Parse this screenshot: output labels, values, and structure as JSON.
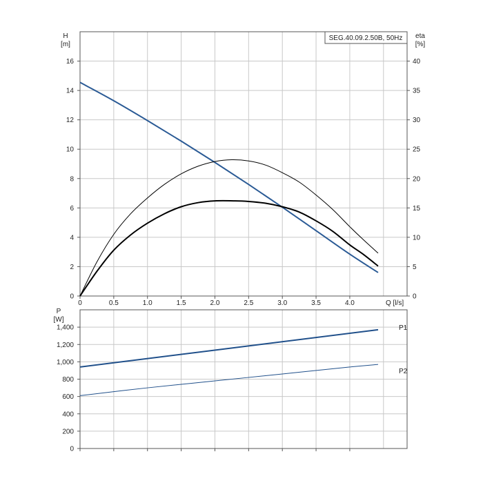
{
  "title_box": "SEG.40.09.2.50B, 50Hz",
  "colors": {
    "head": "#2a5a95",
    "power": "#1f4f8a",
    "eta": "#000000",
    "grid": "#c8c8c8"
  },
  "chart_data": [
    {
      "type": "line",
      "panel": "upper",
      "xlabel": "Q [l/s]",
      "ylabel_left": [
        "H",
        "[m]"
      ],
      "ylabel_right": [
        "eta",
        "[%]"
      ],
      "xlim": [
        0,
        4.85
      ],
      "x_ticks": [
        0,
        0.5,
        1.0,
        1.5,
        2.0,
        2.5,
        3.0,
        3.5,
        4.0
      ],
      "x_tick_labels": [
        "0",
        "0.5",
        "1.0",
        "1.5",
        "2.0",
        "2.5",
        "3.0",
        "3.5",
        "4.0"
      ],
      "ylim_left": [
        0,
        18
      ],
      "y_ticks_left": [
        0,
        2,
        4,
        6,
        8,
        10,
        12,
        14,
        16
      ],
      "ylim_right": [
        0,
        45
      ],
      "y_ticks_right": [
        0,
        5,
        10,
        15,
        20,
        25,
        30,
        35,
        40
      ],
      "grid": true,
      "series": [
        {
          "id": "head",
          "axis": "left",
          "x": [
            0,
            0.5,
            1.0,
            1.5,
            2.0,
            2.5,
            3.0,
            3.5,
            4.0,
            4.42
          ],
          "y": [
            14.55,
            13.3,
            11.95,
            10.55,
            9.1,
            7.6,
            6.05,
            4.45,
            2.85,
            1.6
          ]
        },
        {
          "id": "eta-thick",
          "axis": "right",
          "x": [
            0,
            0.25,
            0.5,
            0.75,
            1.0,
            1.25,
            1.5,
            1.75,
            2.0,
            2.3,
            2.5,
            2.75,
            3.0,
            3.25,
            3.5,
            3.75,
            4.0,
            4.2,
            4.42
          ],
          "y": [
            0,
            4.2,
            7.8,
            10.4,
            12.4,
            14.0,
            15.2,
            15.9,
            16.2,
            16.2,
            16.1,
            15.8,
            15.2,
            14.3,
            12.8,
            11.0,
            8.7,
            7.1,
            5.1
          ]
        },
        {
          "id": "eta-thin",
          "axis": "right",
          "x": [
            0,
            0.25,
            0.5,
            0.75,
            1.0,
            1.25,
            1.5,
            1.75,
            2.0,
            2.25,
            2.5,
            2.75,
            3.0,
            3.25,
            3.5,
            3.75,
            4.0,
            4.2,
            4.42
          ],
          "y": [
            0,
            5.8,
            10.5,
            14.0,
            16.7,
            19.0,
            20.8,
            22.1,
            22.9,
            23.2,
            23.0,
            22.3,
            21.0,
            19.4,
            17.2,
            14.7,
            11.8,
            9.6,
            7.3
          ]
        }
      ]
    },
    {
      "type": "line",
      "panel": "lower",
      "ylabel_left": [
        "P",
        "[W]"
      ],
      "xlim": [
        0,
        4.85
      ],
      "ylim": [
        0,
        1600
      ],
      "y_ticks": [
        0,
        200,
        400,
        600,
        800,
        1000,
        1200,
        1400
      ],
      "y_tick_labels": [
        "0",
        "200",
        "400",
        "600",
        "800",
        "1,000",
        "1,200",
        "1,400"
      ],
      "grid": true,
      "series": [
        {
          "name": "P1",
          "x": [
            0,
            4.42
          ],
          "y": [
            940,
            1370
          ]
        },
        {
          "name": "P2",
          "x": [
            0,
            1.0,
            2.0,
            3.0,
            4.0,
            4.42
          ],
          "y": [
            610,
            700,
            780,
            860,
            940,
            970
          ]
        }
      ]
    }
  ]
}
